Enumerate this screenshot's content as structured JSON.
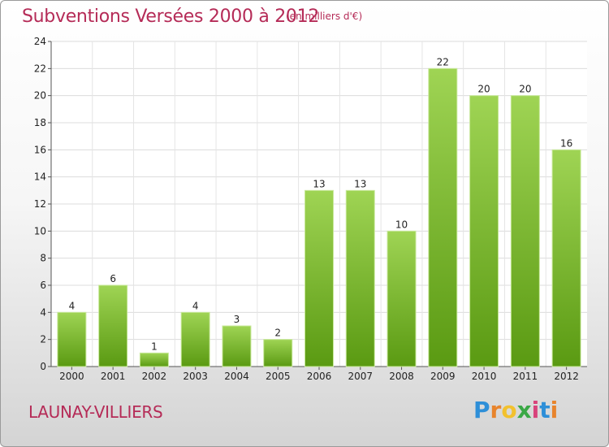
{
  "title": "Subventions Versées 2000 à 2012",
  "subtitle": "(en milliers d'€)",
  "commune": "LAUNAY-VILLIERS",
  "logo": {
    "text": "Proxiti",
    "letters": [
      "P",
      "r",
      "o",
      "x",
      "i",
      "t",
      "i"
    ],
    "colors": [
      "#2e8fd8",
      "#e8842c",
      "#f2c12e",
      "#3aa845",
      "#d8437b",
      "#2e8fd8",
      "#e8842c"
    ]
  },
  "colors": {
    "accent": "#b52b57",
    "bar_top": "#9fd454",
    "bar_bottom": "#5a9a12"
  },
  "chart_data": {
    "type": "bar",
    "categories": [
      "2000",
      "2001",
      "2002",
      "2003",
      "2004",
      "2005",
      "2006",
      "2007",
      "2008",
      "2009",
      "2010",
      "2011",
      "2012"
    ],
    "values": [
      4,
      6,
      1,
      4,
      3,
      2,
      13,
      13,
      10,
      22,
      20,
      20,
      16
    ],
    "title": "Subventions Versées 2000 à 2012",
    "subtitle": "(en milliers d'€)",
    "xlabel": "",
    "ylabel": "",
    "ylim": [
      0,
      24
    ],
    "yticks": [
      0,
      2,
      4,
      6,
      8,
      10,
      12,
      14,
      16,
      18,
      20,
      22,
      24
    ],
    "grid": true,
    "legend": "none"
  }
}
